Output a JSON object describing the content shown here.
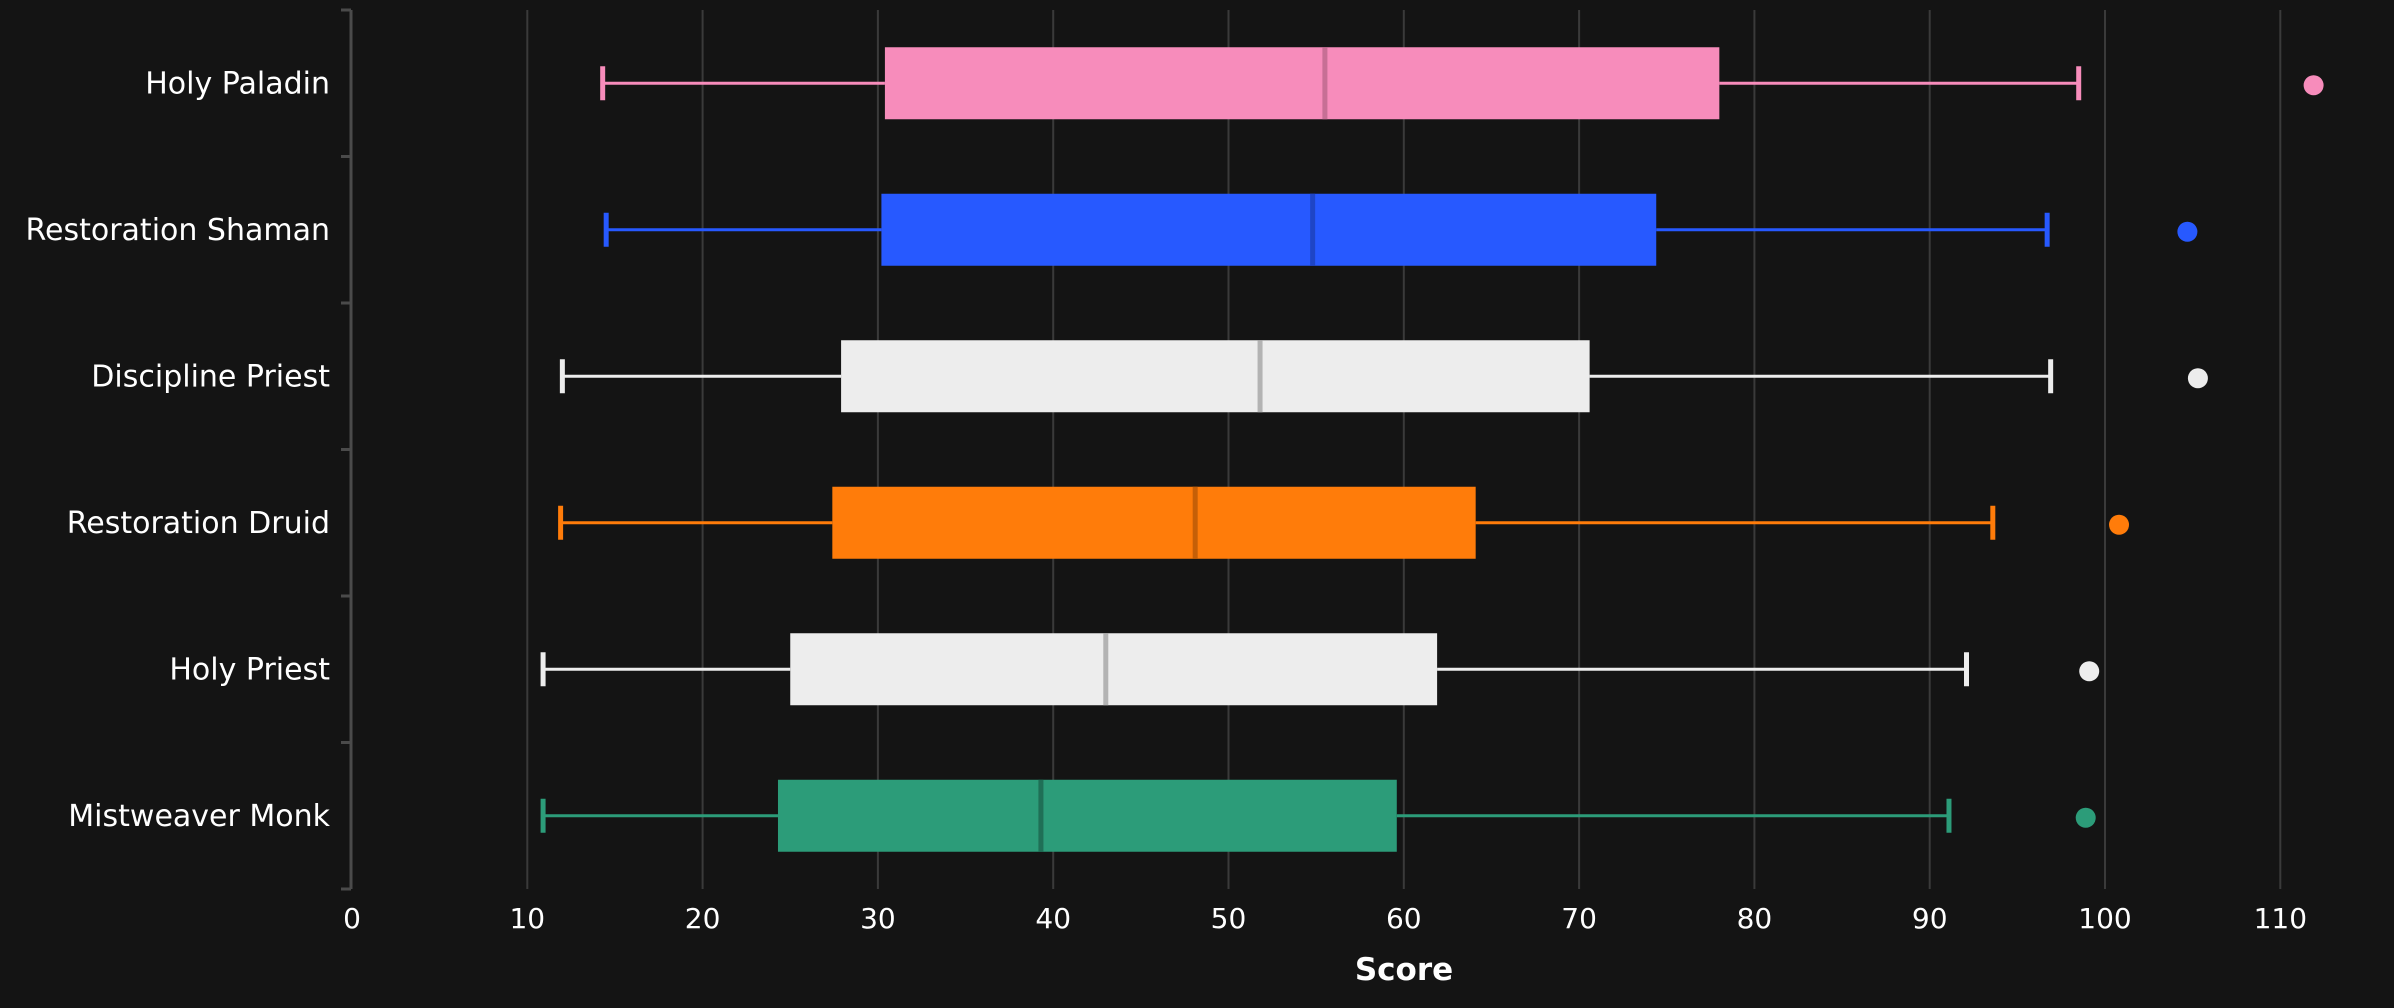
{
  "chart_data": {
    "type": "boxplot",
    "title": "",
    "xlabel": "Score",
    "ylabel": "",
    "xlim": [
      0,
      113
    ],
    "xticks": [
      0,
      10,
      20,
      30,
      40,
      50,
      60,
      70,
      80,
      90,
      100,
      110
    ],
    "grid": "vertical",
    "categories": [
      "Holy Paladin",
      "Restoration Shaman",
      "Discipline Priest",
      "Restoration Druid",
      "Holy Priest",
      "Mistweaver Monk"
    ],
    "boxes": [
      {
        "name": "Holy Paladin",
        "color": "#f78cbb",
        "median_color": "#c76f95",
        "whisker_low": 14.3,
        "q1": 30.4,
        "median": 55.5,
        "q3": 78.0,
        "whisker_high": 98.5,
        "outliers": [
          111.9
        ]
      },
      {
        "name": "Restoration Shaman",
        "color": "#2759ff",
        "median_color": "#1e45c6",
        "whisker_low": 14.5,
        "q1": 30.2,
        "median": 54.8,
        "q3": 74.4,
        "whisker_high": 96.7,
        "outliers": [
          104.7
        ]
      },
      {
        "name": "Discipline Priest",
        "color": "#ededed",
        "median_color": "#b3b3b3",
        "whisker_low": 12.0,
        "q1": 27.9,
        "median": 51.8,
        "q3": 70.6,
        "whisker_high": 96.9,
        "outliers": [
          105.3
        ]
      },
      {
        "name": "Restoration Druid",
        "color": "#ff7c0a",
        "median_color": "#c65f07",
        "whisker_low": 11.9,
        "q1": 27.4,
        "median": 48.1,
        "q3": 64.1,
        "whisker_high": 93.6,
        "outliers": [
          100.8
        ]
      },
      {
        "name": "Holy Priest",
        "color": "#ededed",
        "median_color": "#b3b3b3",
        "whisker_low": 10.9,
        "q1": 25.0,
        "median": 43.0,
        "q3": 61.9,
        "whisker_high": 92.1,
        "outliers": [
          99.1
        ]
      },
      {
        "name": "Mistweaver Monk",
        "color": "#2c9c79",
        "median_color": "#1f6f56",
        "whisker_low": 10.9,
        "q1": 24.3,
        "median": 39.3,
        "q3": 59.6,
        "whisker_high": 91.1,
        "outliers": [
          98.9
        ]
      }
    ]
  }
}
